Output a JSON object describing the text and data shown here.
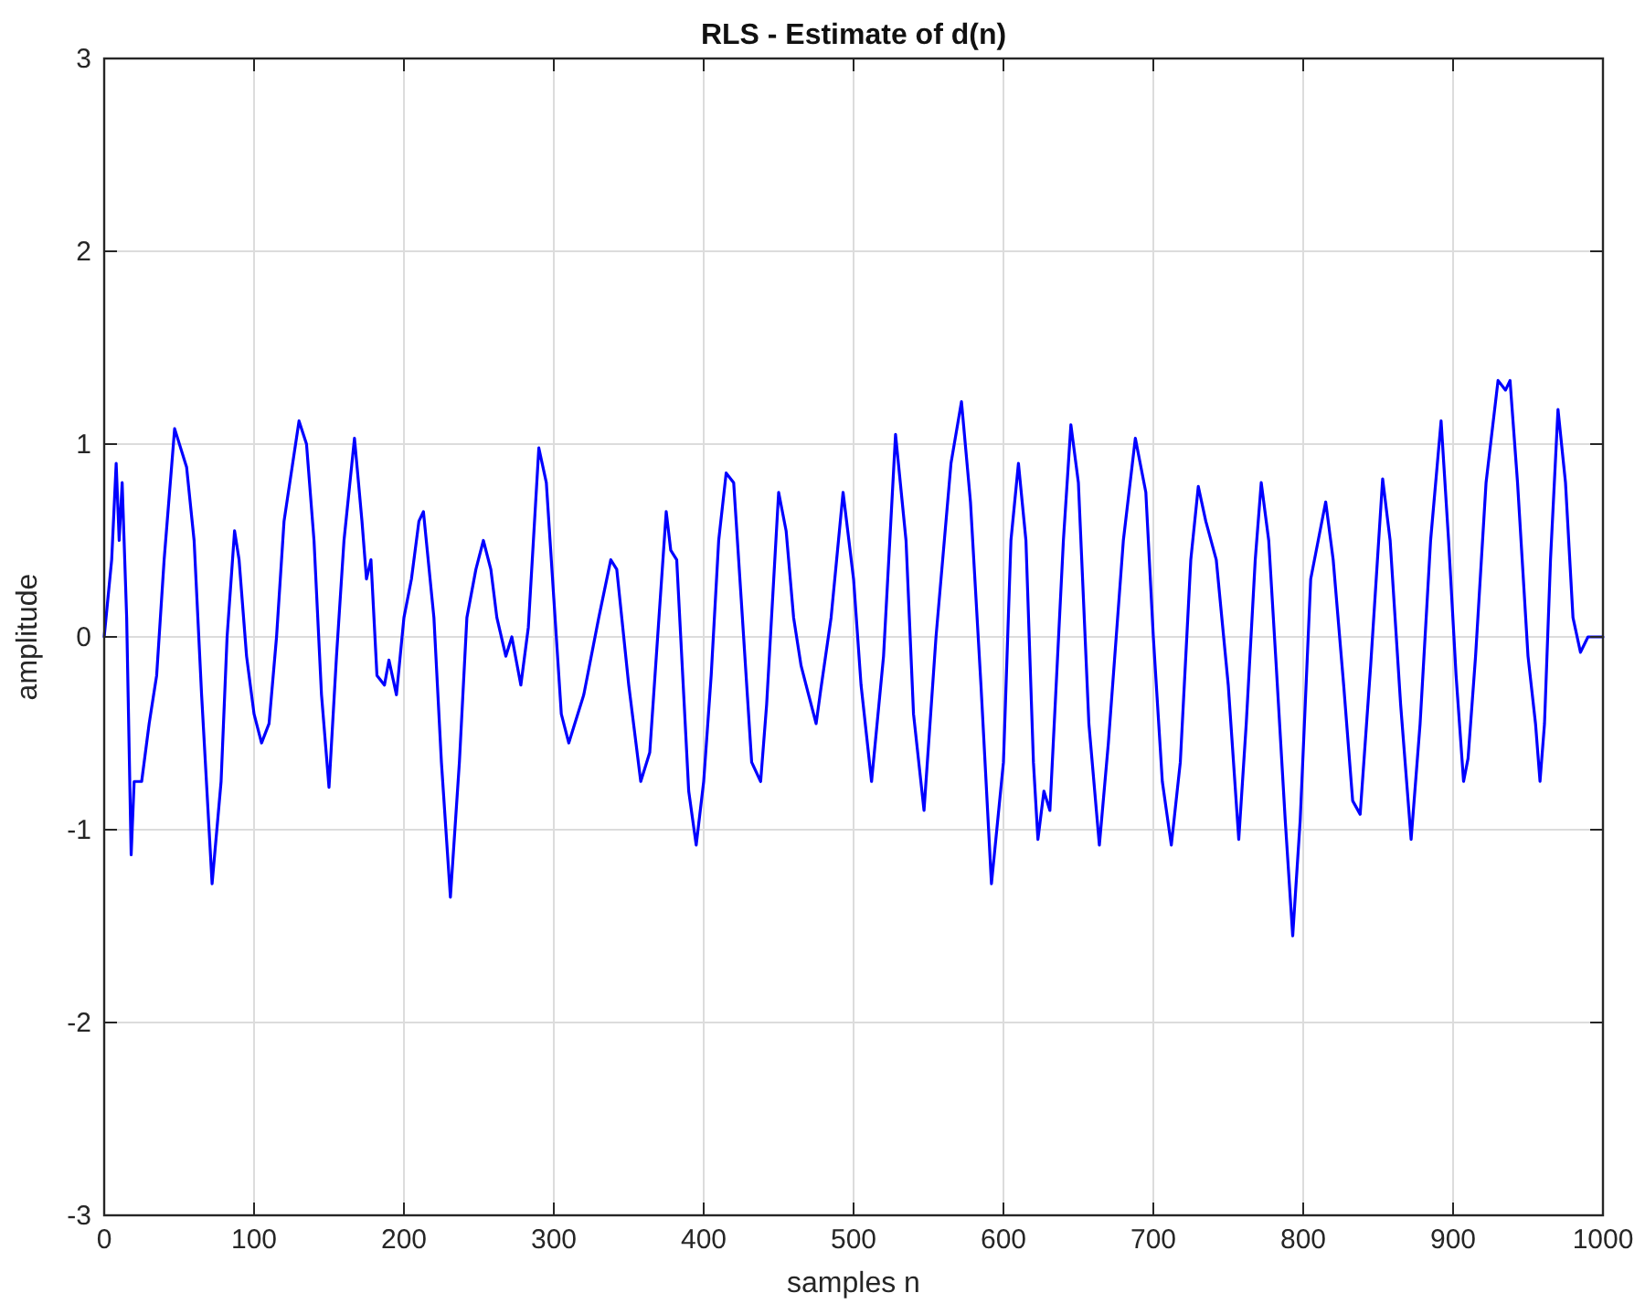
{
  "chart_data": {
    "type": "line",
    "title": "RLS - Estimate of d(n)",
    "xlabel": "samples n",
    "ylabel": "amplitude",
    "xlim": [
      0,
      1000
    ],
    "xticks": [
      0,
      100,
      200,
      300,
      400,
      500,
      600,
      700,
      800,
      900,
      1000
    ],
    "ylim": [
      -3,
      3
    ],
    "yticks": [
      -3,
      -2,
      -1,
      0,
      1,
      2,
      3
    ],
    "grid": true,
    "series": [
      {
        "color": "#0000ff",
        "x": [
          0,
          5,
          8,
          10,
          12,
          15,
          18,
          20,
          25,
          30,
          35,
          40,
          47,
          55,
          60,
          65,
          72,
          78,
          82,
          87,
          90,
          95,
          100,
          105,
          110,
          115,
          120,
          130,
          135,
          140,
          145,
          150,
          155,
          160,
          167,
          172,
          175,
          178,
          182,
          187,
          190,
          195,
          200,
          205,
          210,
          213,
          220,
          225,
          231,
          237,
          242,
          248,
          253,
          258,
          262,
          268,
          272,
          278,
          283,
          290,
          295,
          300,
          305,
          310,
          320,
          330,
          338,
          342,
          350,
          358,
          364,
          375,
          378,
          382,
          390,
          395,
          400,
          405,
          410,
          415,
          420,
          425,
          432,
          438,
          442,
          450,
          455,
          460,
          465,
          470,
          475,
          478,
          485,
          493,
          500,
          505,
          512,
          520,
          528,
          535,
          540,
          547,
          555,
          565,
          572,
          578,
          585,
          592,
          600,
          605,
          610,
          615,
          620,
          623,
          627,
          631,
          640,
          645,
          650,
          657,
          664,
          670,
          680,
          688,
          695,
          700,
          706,
          712,
          718,
          725,
          730,
          735,
          742,
          750,
          757,
          762,
          768,
          772,
          777,
          782,
          788,
          793,
          798,
          805,
          810,
          815,
          820,
          827,
          833,
          838,
          845,
          853,
          858,
          865,
          872,
          878,
          885,
          892,
          897,
          902,
          907,
          910,
          915,
          922,
          930,
          935,
          938,
          943,
          950,
          955,
          958,
          961,
          965,
          970,
          975,
          980,
          985,
          990,
          1000
        ],
        "values": [
          0,
          0.4,
          0.9,
          0.5,
          0.8,
          0.1,
          -1.13,
          -0.75,
          -0.75,
          -0.45,
          -0.2,
          0.4,
          1.08,
          0.88,
          0.5,
          -0.3,
          -1.28,
          -0.75,
          0,
          0.55,
          0.4,
          -0.1,
          -0.4,
          -0.55,
          -0.45,
          0,
          0.6,
          1.12,
          1.0,
          0.5,
          -0.3,
          -0.78,
          -0.1,
          0.5,
          1.03,
          0.6,
          0.3,
          0.4,
          -0.2,
          -0.25,
          -0.12,
          -0.3,
          0.1,
          0.3,
          0.6,
          0.65,
          0.1,
          -0.65,
          -1.35,
          -0.65,
          0.1,
          0.35,
          0.5,
          0.35,
          0.1,
          -0.1,
          0,
          -0.25,
          0.05,
          0.98,
          0.8,
          0.2,
          -0.4,
          -0.55,
          -0.3,
          0.1,
          0.4,
          0.35,
          -0.25,
          -0.75,
          -0.6,
          0.65,
          0.45,
          0.4,
          -0.8,
          -1.08,
          -0.75,
          -0.2,
          0.5,
          0.85,
          0.8,
          0.2,
          -0.65,
          -0.75,
          -0.35,
          0.75,
          0.55,
          0.1,
          -0.15,
          -0.3,
          -0.45,
          -0.28,
          0.1,
          0.75,
          0.3,
          -0.25,
          -0.75,
          -0.1,
          1.05,
          0.5,
          -0.4,
          -0.9,
          0,
          0.9,
          1.22,
          0.7,
          -0.25,
          -1.28,
          -0.65,
          0.5,
          0.9,
          0.5,
          -0.65,
          -1.05,
          -0.8,
          -0.9,
          0.5,
          1.1,
          0.8,
          -0.45,
          -1.08,
          -0.55,
          0.5,
          1.03,
          0.75,
          0,
          -0.75,
          -1.08,
          -0.65,
          0.4,
          0.78,
          0.6,
          0.4,
          -0.25,
          -1.05,
          -0.45,
          0.4,
          0.8,
          0.5,
          -0.15,
          -0.95,
          -1.55,
          -0.95,
          0.3,
          0.5,
          0.7,
          0.4,
          -0.25,
          -0.85,
          -0.92,
          -0.15,
          0.82,
          0.5,
          -0.35,
          -1.05,
          -0.45,
          0.5,
          1.12,
          0.5,
          -0.2,
          -0.75,
          -0.63,
          -0.1,
          0.8,
          1.33,
          1.28,
          1.33,
          0.8,
          -0.1,
          -0.45,
          -0.75,
          -0.45,
          0.4,
          1.18,
          0.8,
          0.1,
          -0.08,
          0,
          0
        ]
      }
    ]
  }
}
